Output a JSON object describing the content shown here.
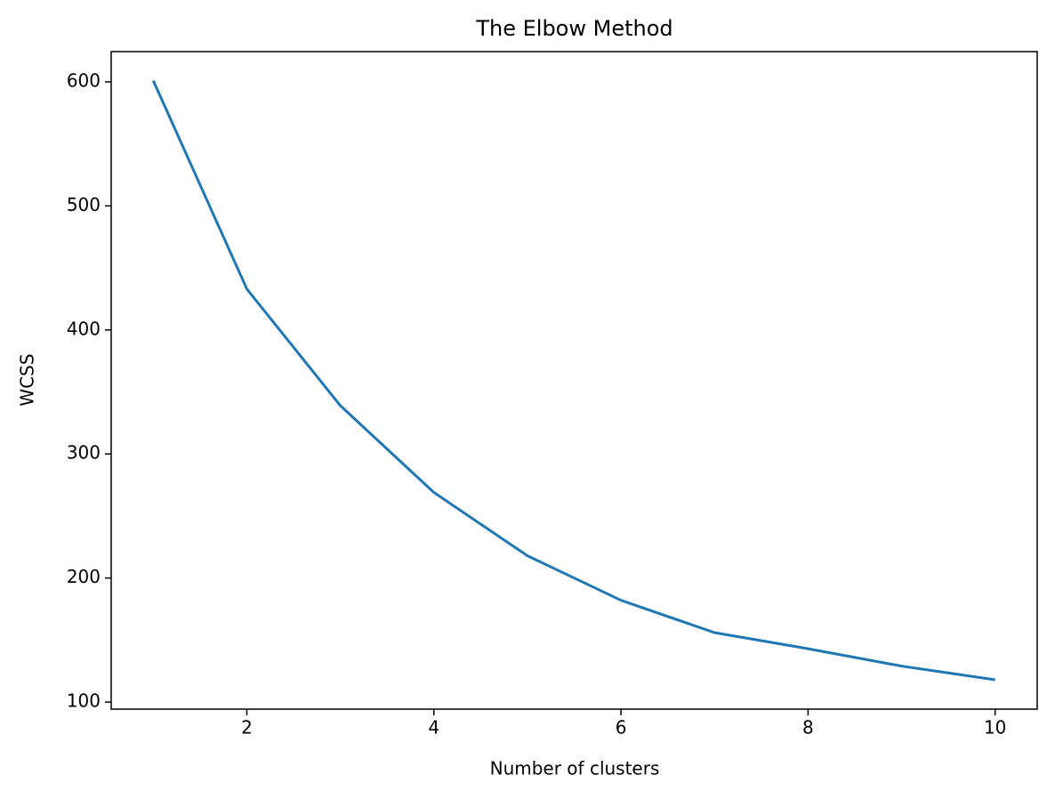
{
  "chart_data": {
    "type": "line",
    "title": "The Elbow Method",
    "x_label": "Number of clusters",
    "y_label": "WCSS",
    "x": [
      1,
      2,
      3,
      4,
      5,
      6,
      7,
      8,
      9,
      10
    ],
    "series": [
      {
        "name": "WCSS",
        "color": "#1f77b4",
        "values": [
          601,
          433,
          339,
          269,
          218,
          182,
          156,
          143,
          129,
          118
        ]
      }
    ],
    "xlim": [
      0.55,
      10.45
    ],
    "ylim": [
      94.3,
      624.4
    ],
    "xticks": [
      2,
      4,
      6,
      8,
      10
    ],
    "yticks": [
      100,
      200,
      300,
      400,
      500,
      600
    ],
    "grid": false,
    "legend": false
  }
}
